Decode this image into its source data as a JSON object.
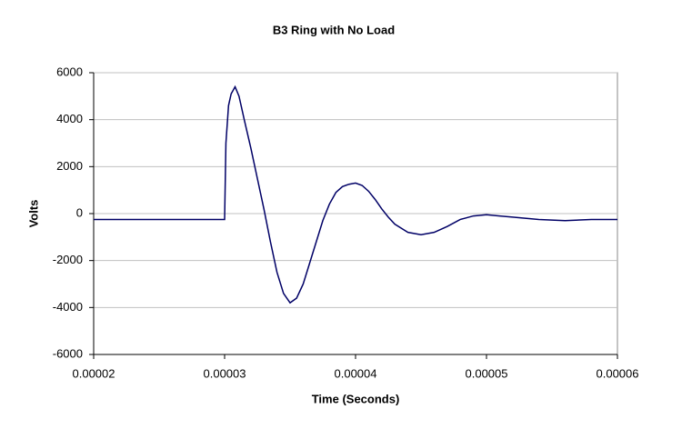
{
  "chart_data": {
    "type": "line",
    "title": "B3 Ring with No Load",
    "x_label": "Time (Seconds)",
    "y_label": "Volts",
    "x": [
      2e-05,
      2.5e-05,
      3e-05,
      3.01e-05,
      3.03e-05,
      3.05e-05,
      3.08e-05,
      3.11e-05,
      3.15e-05,
      3.2e-05,
      3.25e-05,
      3.3e-05,
      3.35e-05,
      3.4e-05,
      3.45e-05,
      3.5e-05,
      3.55e-05,
      3.6e-05,
      3.65e-05,
      3.7e-05,
      3.75e-05,
      3.8e-05,
      3.85e-05,
      3.9e-05,
      3.95e-05,
      4e-05,
      4.05e-05,
      4.1e-05,
      4.15e-05,
      4.2e-05,
      4.25e-05,
      4.3e-05,
      4.4e-05,
      4.5e-05,
      4.6e-05,
      4.7e-05,
      4.8e-05,
      4.9e-05,
      5e-05,
      5.1e-05,
      5.2e-05,
      5.4e-05,
      5.6e-05,
      5.8e-05,
      6e-05
    ],
    "series": [
      {
        "color": "#000066",
        "values": [
          -250,
          -250,
          -250,
          3000,
          4600,
          5100,
          5400,
          5000,
          4000,
          2800,
          1500,
          200,
          -1200,
          -2500,
          -3400,
          -3800,
          -3600,
          -3000,
          -2100,
          -1200,
          -300,
          400,
          900,
          1150,
          1250,
          1300,
          1200,
          950,
          600,
          200,
          -150,
          -450,
          -800,
          -900,
          -800,
          -550,
          -250,
          -100,
          -50,
          -100,
          -150,
          -250,
          -300,
          -250,
          -250
        ]
      }
    ],
    "xlim": [
      2e-05,
      6e-05
    ],
    "xticks": [
      2e-05,
      3e-05,
      4e-05,
      5e-05,
      6e-05
    ],
    "ylim": [
      -6000,
      6000
    ],
    "yticks": [
      -6000,
      -4000,
      -2000,
      0,
      2000,
      4000,
      6000
    ],
    "grid": true
  }
}
